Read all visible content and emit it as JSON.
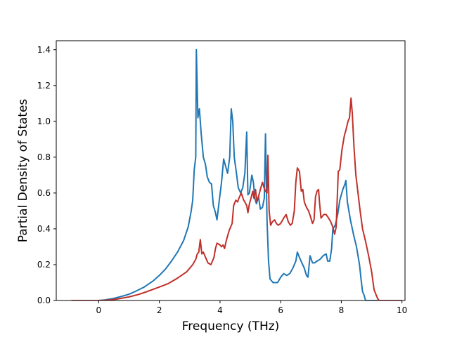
{
  "chart_data": {
    "type": "line",
    "title": "",
    "xlabel": "Frequency (THz)",
    "ylabel": "Partial Density of States",
    "xlim": [
      -1.4,
      10.1
    ],
    "ylim": [
      0.0,
      1.45
    ],
    "xticks": [
      0,
      2,
      4,
      6,
      8,
      10
    ],
    "yticks": [
      0.0,
      0.2,
      0.4,
      0.6,
      0.8,
      1.0,
      1.2,
      1.4
    ],
    "xtick_labels": [
      "0",
      "2",
      "4",
      "6",
      "8",
      "10"
    ],
    "ytick_labels": [
      "0.0",
      "0.2",
      "0.4",
      "0.6",
      "0.8",
      "1.0",
      "1.2",
      "1.4"
    ],
    "grid": false,
    "legend": "none",
    "series": [
      {
        "color": "#1f77b4",
        "points": [
          [
            -0.9,
            0
          ],
          [
            0,
            0
          ],
          [
            0.2,
            0.003
          ],
          [
            0.5,
            0.012
          ],
          [
            0.8,
            0.025
          ],
          [
            1.0,
            0.035
          ],
          [
            1.2,
            0.05
          ],
          [
            1.5,
            0.075
          ],
          [
            1.8,
            0.11
          ],
          [
            2.0,
            0.14
          ],
          [
            2.2,
            0.175
          ],
          [
            2.4,
            0.22
          ],
          [
            2.6,
            0.27
          ],
          [
            2.8,
            0.335
          ],
          [
            2.95,
            0.41
          ],
          [
            3.05,
            0.5
          ],
          [
            3.1,
            0.56
          ],
          [
            3.15,
            0.73
          ],
          [
            3.2,
            0.8
          ],
          [
            3.22,
            1.4
          ],
          [
            3.27,
            1.02
          ],
          [
            3.32,
            1.07
          ],
          [
            3.38,
            0.93
          ],
          [
            3.45,
            0.8
          ],
          [
            3.52,
            0.76
          ],
          [
            3.58,
            0.69
          ],
          [
            3.65,
            0.66
          ],
          [
            3.72,
            0.65
          ],
          [
            3.78,
            0.53
          ],
          [
            3.85,
            0.49
          ],
          [
            3.9,
            0.45
          ],
          [
            3.97,
            0.55
          ],
          [
            4.05,
            0.66
          ],
          [
            4.12,
            0.79
          ],
          [
            4.2,
            0.74
          ],
          [
            4.25,
            0.71
          ],
          [
            4.32,
            0.8
          ],
          [
            4.37,
            1.07
          ],
          [
            4.42,
            1.0
          ],
          [
            4.47,
            0.8
          ],
          [
            4.55,
            0.7
          ],
          [
            4.6,
            0.63
          ],
          [
            4.68,
            0.6
          ],
          [
            4.75,
            0.63
          ],
          [
            4.82,
            0.71
          ],
          [
            4.88,
            0.94
          ],
          [
            4.92,
            0.59
          ],
          [
            4.97,
            0.6
          ],
          [
            5.05,
            0.7
          ],
          [
            5.1,
            0.66
          ],
          [
            5.15,
            0.57
          ],
          [
            5.2,
            0.54
          ],
          [
            5.27,
            0.58
          ],
          [
            5.33,
            0.51
          ],
          [
            5.4,
            0.52
          ],
          [
            5.46,
            0.57
          ],
          [
            5.5,
            0.93
          ],
          [
            5.55,
            0.45
          ],
          [
            5.6,
            0.22
          ],
          [
            5.65,
            0.12
          ],
          [
            5.75,
            0.1
          ],
          [
            5.9,
            0.1
          ],
          [
            6.0,
            0.13
          ],
          [
            6.1,
            0.15
          ],
          [
            6.2,
            0.14
          ],
          [
            6.3,
            0.15
          ],
          [
            6.4,
            0.18
          ],
          [
            6.5,
            0.22
          ],
          [
            6.55,
            0.27
          ],
          [
            6.62,
            0.24
          ],
          [
            6.7,
            0.21
          ],
          [
            6.78,
            0.18
          ],
          [
            6.85,
            0.14
          ],
          [
            6.9,
            0.13
          ],
          [
            6.97,
            0.25
          ],
          [
            7.05,
            0.21
          ],
          [
            7.12,
            0.21
          ],
          [
            7.2,
            0.22
          ],
          [
            7.3,
            0.23
          ],
          [
            7.4,
            0.25
          ],
          [
            7.5,
            0.26
          ],
          [
            7.55,
            0.22
          ],
          [
            7.62,
            0.22
          ],
          [
            7.68,
            0.29
          ],
          [
            7.72,
            0.4
          ],
          [
            7.8,
            0.42
          ],
          [
            7.88,
            0.48
          ],
          [
            7.95,
            0.56
          ],
          [
            8.05,
            0.62
          ],
          [
            8.12,
            0.65
          ],
          [
            8.15,
            0.67
          ],
          [
            8.2,
            0.55
          ],
          [
            8.3,
            0.45
          ],
          [
            8.4,
            0.37
          ],
          [
            8.5,
            0.3
          ],
          [
            8.6,
            0.2
          ],
          [
            8.65,
            0.12
          ],
          [
            8.7,
            0.05
          ],
          [
            8.75,
            0.03
          ],
          [
            8.8,
            0
          ],
          [
            9.6,
            0
          ]
        ]
      },
      {
        "color": "#c0302a",
        "points": [
          [
            -0.9,
            0
          ],
          [
            0,
            0
          ],
          [
            0.3,
            0.002
          ],
          [
            0.6,
            0.008
          ],
          [
            1.0,
            0.02
          ],
          [
            1.3,
            0.033
          ],
          [
            1.6,
            0.05
          ],
          [
            2.0,
            0.075
          ],
          [
            2.3,
            0.095
          ],
          [
            2.6,
            0.125
          ],
          [
            2.9,
            0.16
          ],
          [
            3.1,
            0.2
          ],
          [
            3.2,
            0.23
          ],
          [
            3.25,
            0.26
          ],
          [
            3.3,
            0.27
          ],
          [
            3.35,
            0.34
          ],
          [
            3.4,
            0.26
          ],
          [
            3.45,
            0.27
          ],
          [
            3.5,
            0.25
          ],
          [
            3.55,
            0.23
          ],
          [
            3.6,
            0.21
          ],
          [
            3.7,
            0.2
          ],
          [
            3.8,
            0.24
          ],
          [
            3.85,
            0.29
          ],
          [
            3.9,
            0.32
          ],
          [
            4.0,
            0.31
          ],
          [
            4.05,
            0.3
          ],
          [
            4.1,
            0.31
          ],
          [
            4.15,
            0.29
          ],
          [
            4.2,
            0.33
          ],
          [
            4.3,
            0.39
          ],
          [
            4.4,
            0.43
          ],
          [
            4.45,
            0.53
          ],
          [
            4.52,
            0.56
          ],
          [
            4.58,
            0.55
          ],
          [
            4.62,
            0.57
          ],
          [
            4.7,
            0.6
          ],
          [
            4.78,
            0.56
          ],
          [
            4.82,
            0.55
          ],
          [
            4.88,
            0.53
          ],
          [
            4.92,
            0.49
          ],
          [
            4.97,
            0.54
          ],
          [
            5.02,
            0.57
          ],
          [
            5.08,
            0.61
          ],
          [
            5.12,
            0.57
          ],
          [
            5.17,
            0.62
          ],
          [
            5.22,
            0.55
          ],
          [
            5.27,
            0.58
          ],
          [
            5.33,
            0.62
          ],
          [
            5.4,
            0.66
          ],
          [
            5.45,
            0.63
          ],
          [
            5.5,
            0.61
          ],
          [
            5.55,
            0.6
          ],
          [
            5.58,
            0.81
          ],
          [
            5.62,
            0.5
          ],
          [
            5.67,
            0.42
          ],
          [
            5.73,
            0.44
          ],
          [
            5.8,
            0.45
          ],
          [
            5.86,
            0.43
          ],
          [
            5.92,
            0.42
          ],
          [
            6.0,
            0.43
          ],
          [
            6.1,
            0.46
          ],
          [
            6.18,
            0.48
          ],
          [
            6.25,
            0.44
          ],
          [
            6.32,
            0.42
          ],
          [
            6.38,
            0.43
          ],
          [
            6.45,
            0.5
          ],
          [
            6.5,
            0.66
          ],
          [
            6.55,
            0.74
          ],
          [
            6.62,
            0.72
          ],
          [
            6.68,
            0.61
          ],
          [
            6.73,
            0.62
          ],
          [
            6.78,
            0.55
          ],
          [
            6.85,
            0.52
          ],
          [
            6.92,
            0.5
          ],
          [
            6.98,
            0.47
          ],
          [
            7.05,
            0.43
          ],
          [
            7.1,
            0.45
          ],
          [
            7.15,
            0.58
          ],
          [
            7.2,
            0.61
          ],
          [
            7.25,
            0.62
          ],
          [
            7.28,
            0.55
          ],
          [
            7.33,
            0.46
          ],
          [
            7.42,
            0.48
          ],
          [
            7.5,
            0.48
          ],
          [
            7.58,
            0.46
          ],
          [
            7.65,
            0.44
          ],
          [
            7.72,
            0.41
          ],
          [
            7.78,
            0.37
          ],
          [
            7.83,
            0.41
          ],
          [
            7.9,
            0.72
          ],
          [
            7.95,
            0.73
          ],
          [
            8.02,
            0.84
          ],
          [
            8.1,
            0.92
          ],
          [
            8.15,
            0.95
          ],
          [
            8.22,
            1.0
          ],
          [
            8.27,
            1.02
          ],
          [
            8.32,
            1.13
          ],
          [
            8.36,
            1.05
          ],
          [
            8.42,
            0.85
          ],
          [
            8.48,
            0.7
          ],
          [
            8.55,
            0.6
          ],
          [
            8.62,
            0.5
          ],
          [
            8.7,
            0.4
          ],
          [
            8.8,
            0.33
          ],
          [
            8.9,
            0.25
          ],
          [
            9.0,
            0.16
          ],
          [
            9.08,
            0.06
          ],
          [
            9.15,
            0.03
          ],
          [
            9.2,
            0.01
          ],
          [
            9.25,
            0
          ],
          [
            10.0,
            0
          ]
        ]
      }
    ]
  }
}
